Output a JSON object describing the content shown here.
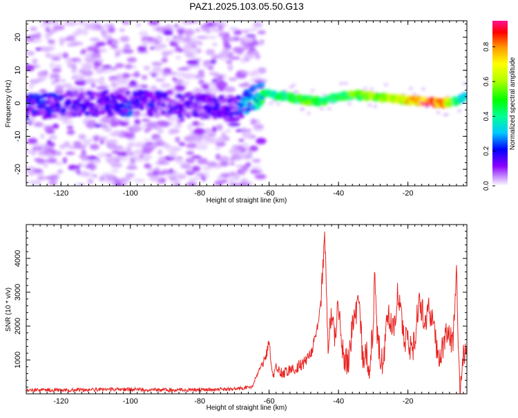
{
  "title": "PAZ1.2025.103.05.50.G13",
  "chart_data": [
    {
      "type": "heatmap",
      "xlabel": "Height of straight line (km)",
      "ylabel": "Frequency (Hz)",
      "xlim": [
        -130,
        -3
      ],
      "ylim": [
        -25,
        25
      ],
      "x_ticks": [
        -120,
        -100,
        -80,
        -60,
        -40,
        -20
      ],
      "x_tick_labels": [
        "-120",
        "-100",
        "-80",
        "-60",
        "-40",
        "-20"
      ],
      "y_ticks": [
        20,
        10,
        0,
        -10,
        -20
      ],
      "y_tick_labels": [
        "20",
        "10",
        "0",
        "-10",
        "-20"
      ],
      "colorbar": {
        "label": "Normalized spectral amplitude",
        "range": [
          0,
          0.95
        ],
        "ticks": [
          0.0,
          0.2,
          0.4,
          0.6,
          0.8
        ],
        "tick_labels": [
          "0.0",
          "0.2",
          "0.4",
          "0.6",
          "0.8"
        ],
        "colormap": "rainbow"
      },
      "ridge": {
        "x": [
          -128,
          -120,
          -110,
          -100,
          -90,
          -80,
          -70,
          -62,
          -58,
          -50,
          -45,
          -40,
          -35,
          -30,
          -25,
          -20,
          -15,
          -10,
          -5,
          -3
        ],
        "frequency": [
          -1,
          -0.5,
          0,
          0,
          0,
          -1,
          -2,
          3,
          2.5,
          1,
          0.5,
          2,
          2.5,
          2,
          1.5,
          1,
          0.5,
          0,
          1,
          3
        ],
        "amplitude": [
          0.2,
          0.18,
          0.15,
          0.2,
          0.15,
          0.15,
          0.15,
          0.45,
          0.45,
          0.55,
          0.5,
          0.5,
          0.55,
          0.6,
          0.65,
          0.75,
          0.92,
          0.8,
          0.4,
          0.35
        ]
      }
    },
    {
      "type": "line",
      "xlabel": "Height of straight line (km)",
      "ylabel": "SNR (10 * v/v)",
      "xlim": [
        -130,
        -3
      ],
      "ylim": [
        0,
        5000
      ],
      "x_ticks": [
        -120,
        -100,
        -80,
        -60,
        -40,
        -20
      ],
      "x_tick_labels": [
        "-120",
        "-100",
        "-80",
        "-60",
        "-40",
        "-20"
      ],
      "y_ticks": [
        1000,
        2000,
        3000,
        4000
      ],
      "y_tick_labels": [
        "1000",
        "2000",
        "3000",
        "4000"
      ],
      "series": [
        {
          "color": "#e8221f",
          "x": [
            -130,
            -120,
            -110,
            -100,
            -90,
            -80,
            -70,
            -65,
            -62,
            -61,
            -60,
            -59,
            -58,
            -56,
            -54,
            -52,
            -50,
            -48,
            -46.5,
            -45,
            -44,
            -43.5,
            -43,
            -42,
            -41,
            -40,
            -39,
            -38,
            -37,
            -36,
            -35,
            -34,
            -33,
            -32,
            -31,
            -30,
            -29.5,
            -29,
            -28,
            -27,
            -26,
            -25,
            -24,
            -23,
            -22,
            -21,
            -20,
            -19,
            -18,
            -17,
            -16,
            -15,
            -14,
            -13,
            -12,
            -11,
            -10,
            -9,
            -8,
            -7,
            -6,
            -5.5,
            -5,
            -4,
            -3
          ],
          "y": [
            120,
            110,
            120,
            130,
            110,
            120,
            140,
            200,
            900,
            1100,
            1500,
            500,
            800,
            600,
            700,
            800,
            900,
            1200,
            1700,
            2700,
            4950,
            2800,
            1500,
            2500,
            1600,
            2700,
            1300,
            900,
            1000,
            2000,
            2400,
            2600,
            1000,
            1200,
            800,
            2000,
            3750,
            2000,
            1100,
            800,
            2500,
            2100,
            1800,
            3100,
            2300,
            1500,
            1700,
            1200,
            1600,
            2600,
            2500,
            2200,
            2600,
            2200,
            1500,
            1000,
            1300,
            1900,
            1700,
            1400,
            3950,
            1000,
            50,
            1100,
            1200
          ]
        }
      ]
    }
  ]
}
